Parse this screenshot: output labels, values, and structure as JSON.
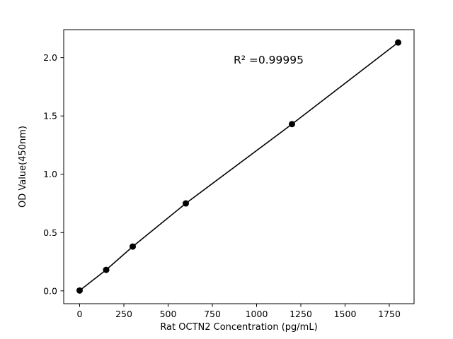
{
  "chart_data": {
    "type": "line",
    "title": "",
    "xlabel": "Rat OCTN2 Concentration (pg/mL)",
    "ylabel": "OD Value(450nm)",
    "x": [
      0,
      150,
      300,
      600,
      1200,
      1800
    ],
    "y": [
      0.003,
      0.18,
      0.38,
      0.75,
      1.43,
      2.13
    ],
    "xlim": [
      -90,
      1890
    ],
    "ylim": [
      -0.11,
      2.24
    ],
    "xticks": [
      0,
      250,
      500,
      750,
      1000,
      1250,
      1500,
      1750
    ],
    "yticks": [
      "0.0",
      "0.5",
      "1.0",
      "1.5",
      "2.0"
    ],
    "annotation": {
      "text": "R² =0.99995",
      "x": 870,
      "y": 1.95
    },
    "grid": false,
    "legend": "none",
    "line_color": "#000000",
    "marker_color": "#000000",
    "background": "#ffffff"
  }
}
